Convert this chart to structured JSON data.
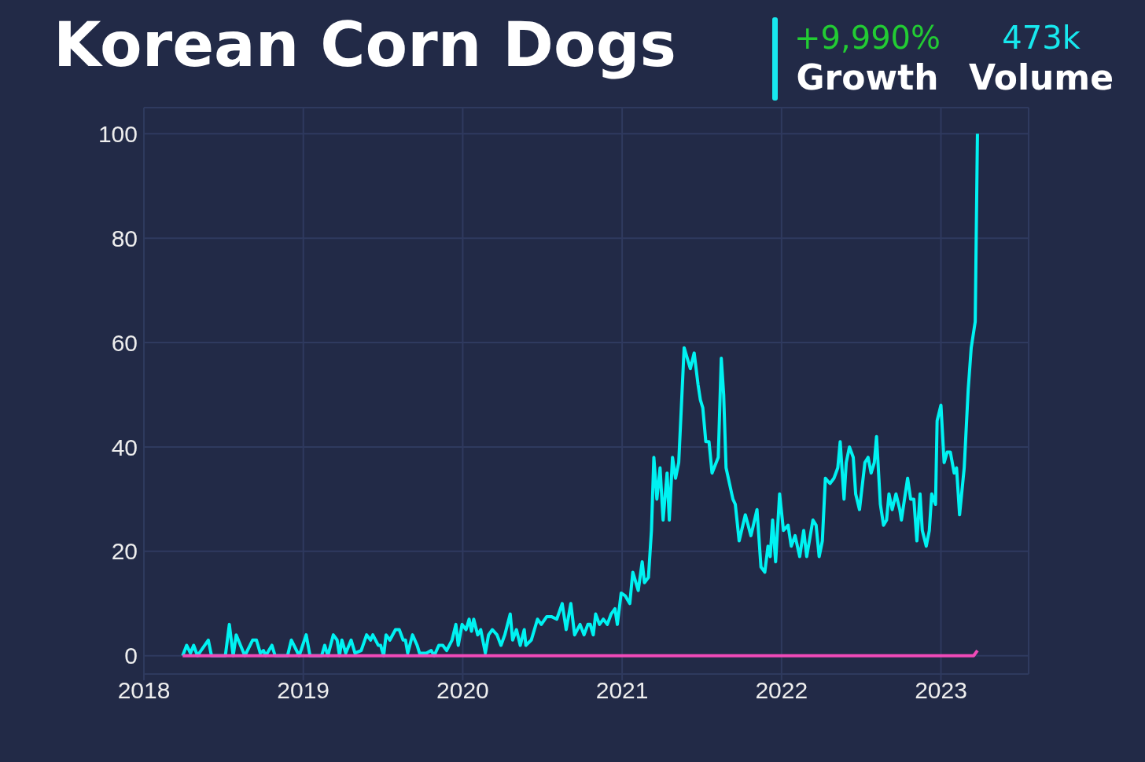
{
  "chart_data": {
    "type": "line",
    "title": "Korean Corn Dogs",
    "annotations": [
      "+9,990%",
      "Growth",
      "473k",
      "Volume"
    ],
    "xlim": [
      2018,
      2023.55
    ],
    "xticks": [
      2018,
      2019,
      2020,
      2021,
      2022,
      2023
    ],
    "ylim": [
      -3.5,
      105
    ],
    "yticks": [
      0,
      20,
      40,
      60,
      80,
      100
    ],
    "grid": true,
    "series": [
      {
        "color": "#00f2f2",
        "x": [
          2018.243,
          2018.268,
          2018.292,
          2018.312,
          2018.336,
          2018.404,
          2018.424,
          2018.511,
          2018.536,
          2018.56,
          2018.579,
          2018.633,
          2018.682,
          2018.706,
          2018.73,
          2018.75,
          2018.764,
          2018.803,
          2018.823,
          2018.901,
          2018.925,
          2018.974,
          2019.018,
          2019.042,
          2019.115,
          2019.134,
          2019.154,
          2019.188,
          2019.212,
          2019.227,
          2019.242,
          2019.266,
          2019.3,
          2019.324,
          2019.363,
          2019.397,
          2019.422,
          2019.436,
          2019.47,
          2019.485,
          2019.504,
          2019.519,
          2019.543,
          2019.578,
          2019.602,
          2019.626,
          2019.641,
          2019.655,
          2019.685,
          2019.714,
          2019.729,
          2019.772,
          2019.802,
          2019.821,
          2019.85,
          2019.875,
          2019.899,
          2019.933,
          2019.957,
          2019.972,
          2019.996,
          2020.021,
          2020.04,
          2020.055,
          2020.069,
          2020.094,
          2020.113,
          2020.142,
          2020.162,
          2020.186,
          2020.215,
          2020.24,
          2020.264,
          2020.298,
          2020.313,
          2020.337,
          2020.361,
          2020.386,
          2020.396,
          2020.43,
          2020.469,
          2020.493,
          2020.527,
          2020.556,
          2020.59,
          2020.624,
          2020.649,
          2020.678,
          2020.702,
          2020.736,
          2020.761,
          2020.785,
          2020.8,
          2020.819,
          2020.834,
          2020.858,
          2020.882,
          2020.907,
          2020.931,
          2020.955,
          2020.97,
          2020.994,
          2021.019,
          2021.048,
          2021.067,
          2021.101,
          2021.126,
          2021.14,
          2021.165,
          2021.184,
          2021.199,
          2021.218,
          2021.238,
          2021.257,
          2021.282,
          2021.296,
          2021.316,
          2021.335,
          2021.355,
          2021.369,
          2021.389,
          2021.428,
          2021.452,
          2021.476,
          2021.491,
          2021.506,
          2021.525,
          2021.545,
          2021.564,
          2021.603,
          2021.622,
          2021.637,
          2021.652,
          2021.695,
          2021.71,
          2021.734,
          2021.773,
          2021.808,
          2021.846,
          2021.871,
          2021.895,
          2021.915,
          2021.929,
          2021.944,
          2021.963,
          2021.988,
          2022.012,
          2022.041,
          2022.061,
          2022.085,
          2022.114,
          2022.139,
          2022.158,
          2022.197,
          2022.217,
          2022.236,
          2022.256,
          2022.275,
          2022.304,
          2022.329,
          2022.353,
          2022.368,
          2022.392,
          2022.406,
          2022.426,
          2022.45,
          2022.465,
          2022.489,
          2022.523,
          2022.543,
          2022.562,
          2022.582,
          2022.596,
          2022.62,
          2022.64,
          2022.659,
          2022.674,
          2022.694,
          2022.718,
          2022.742,
          2022.752,
          2022.791,
          2022.81,
          2022.83,
          2022.849,
          2022.869,
          2022.883,
          2022.908,
          2022.927,
          2022.942,
          2022.966,
          2022.976,
          2023.0,
          2023.02,
          2023.039,
          2023.059,
          2023.083,
          2023.098,
          2023.117,
          2023.146,
          2023.171,
          2023.19,
          2023.215,
          2023.229
        ],
        "values": [
          0,
          2,
          0.5,
          2,
          0,
          3,
          0,
          0,
          6,
          0,
          4,
          0,
          3,
          3,
          0.5,
          1,
          0,
          2,
          0,
          0,
          3,
          0,
          4,
          0,
          0,
          2,
          0,
          4,
          3,
          0,
          3,
          0.5,
          3,
          0.5,
          1,
          4,
          3,
          4,
          2,
          2,
          0,
          4,
          3,
          5,
          5,
          3,
          3,
          0.5,
          4,
          2,
          0.5,
          0.5,
          1,
          0,
          2,
          2,
          1,
          3,
          6,
          2,
          6,
          5,
          7,
          4.7,
          7,
          4,
          5,
          0.5,
          4,
          5,
          4,
          2,
          4,
          8,
          3,
          5,
          2,
          5,
          2,
          3,
          7,
          6,
          7.5,
          7.5,
          7,
          10,
          5,
          10,
          4,
          6,
          4,
          6,
          6,
          4,
          8,
          6,
          7,
          6,
          8,
          9,
          6,
          12,
          11.5,
          10,
          16,
          12.5,
          18,
          14,
          15,
          24,
          38,
          30,
          36,
          26,
          35,
          26,
          38,
          34,
          37,
          46,
          59,
          55,
          58,
          52,
          49,
          47.5,
          41,
          41,
          35,
          38,
          57,
          50,
          36,
          30,
          29,
          22,
          27,
          23,
          28,
          17,
          16,
          21,
          19,
          26,
          18,
          31,
          24,
          25,
          21,
          23,
          19,
          24,
          19,
          26,
          25,
          19,
          22,
          34,
          33,
          34,
          36,
          41,
          30,
          37,
          40,
          38,
          31,
          28,
          37,
          38,
          35,
          37,
          42,
          29,
          25,
          26,
          31,
          28,
          31,
          28,
          26,
          34,
          30,
          30,
          22,
          31,
          24,
          21,
          24,
          31,
          29,
          45,
          48,
          37,
          39,
          39,
          35,
          36,
          27,
          36,
          51,
          59,
          64,
          100
        ]
      },
      {
        "color": "#f04ab8",
        "x": [
          2018.243,
          2023.205,
          2023.229
        ],
        "values": [
          0,
          0,
          1
        ]
      }
    ]
  }
}
